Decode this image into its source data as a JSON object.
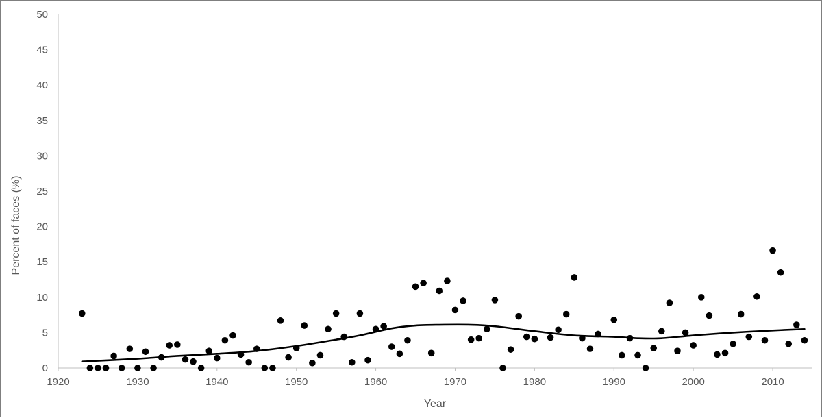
{
  "chart_data": {
    "type": "scatter",
    "title": "",
    "xlabel": "Year",
    "ylabel": "Percent of faces (%)",
    "xlim": [
      1920,
      2015
    ],
    "ylim": [
      0,
      50
    ],
    "x_ticks": [
      1920,
      1930,
      1940,
      1950,
      1960,
      1970,
      1980,
      1990,
      2000,
      2010
    ],
    "y_ticks": [
      0,
      5,
      10,
      15,
      20,
      25,
      30,
      35,
      40,
      45,
      50
    ],
    "grid": false,
    "legend": "none",
    "colors": {
      "points": "#000000",
      "trend": "#000000",
      "axis": "#bfbfbf",
      "text": "#595959"
    },
    "series": [
      {
        "kind": "points",
        "x": [
          1923,
          1924,
          1925,
          1926,
          1927,
          1928,
          1929,
          1930,
          1931,
          1932,
          1933,
          1934,
          1935,
          1936,
          1937,
          1938,
          1939,
          1940,
          1941,
          1942,
          1943,
          1944,
          1945,
          1946,
          1947,
          1948,
          1949,
          1950,
          1951,
          1952,
          1953,
          1954,
          1955,
          1956,
          1957,
          1958,
          1959,
          1960,
          1961,
          1962,
          1963,
          1964,
          1965,
          1966,
          1967,
          1968,
          1969,
          1970,
          1971,
          1972,
          1973,
          1974,
          1975,
          1976,
          1977,
          1978,
          1979,
          1980,
          1982,
          1983,
          1984,
          1985,
          1986,
          1987,
          1988,
          1990,
          1991,
          1992,
          1993,
          1994,
          1995,
          1996,
          1997,
          1998,
          1999,
          2000,
          2001,
          2002,
          2003,
          2004,
          2005,
          2006,
          2007,
          2008,
          2009,
          2010,
          2011,
          2012,
          2013,
          2014
        ],
        "y": [
          7.7,
          0,
          0,
          0,
          1.7,
          0,
          2.7,
          0,
          2.3,
          0,
          1.5,
          3.2,
          3.3,
          1.2,
          0.9,
          0,
          2.4,
          1.4,
          3.9,
          4.6,
          1.9,
          0.8,
          2.7,
          0,
          0,
          6.7,
          1.5,
          2.8,
          6.0,
          0.7,
          1.8,
          5.5,
          7.7,
          4.4,
          0.8,
          7.7,
          1.1,
          5.5,
          5.9,
          3.0,
          2.0,
          3.9,
          11.5,
          12.0,
          2.1,
          10.9,
          12.3,
          8.2,
          9.5,
          4.0,
          4.2,
          5.5,
          9.6,
          0,
          2.6,
          7.3,
          4.4,
          4.1,
          4.3,
          5.4,
          7.6,
          12.8,
          4.2,
          2.7,
          4.8,
          6.8,
          1.8,
          4.2,
          1.8,
          0,
          2.8,
          5.2,
          9.2,
          2.4,
          5.0,
          3.2,
          10.0,
          7.4,
          1.9,
          2.1,
          3.4,
          7.6,
          4.4,
          10.1,
          3.9,
          16.6,
          13.5,
          3.4,
          6.1,
          3.9
        ]
      },
      {
        "kind": "trend",
        "x": [
          1923,
          1930,
          1935,
          1940,
          1945,
          1950,
          1955,
          1958,
          1962,
          1965,
          1968,
          1972,
          1975,
          1980,
          1985,
          1990,
          1993,
          1996,
          2000,
          2005,
          2010,
          2014
        ],
        "y": [
          0.9,
          1.3,
          1.7,
          2.0,
          2.4,
          3.1,
          4.0,
          4.6,
          5.6,
          6.0,
          6.1,
          6.1,
          5.9,
          5.2,
          4.6,
          4.4,
          4.2,
          4.2,
          4.6,
          5.0,
          5.3,
          5.5
        ]
      }
    ]
  }
}
